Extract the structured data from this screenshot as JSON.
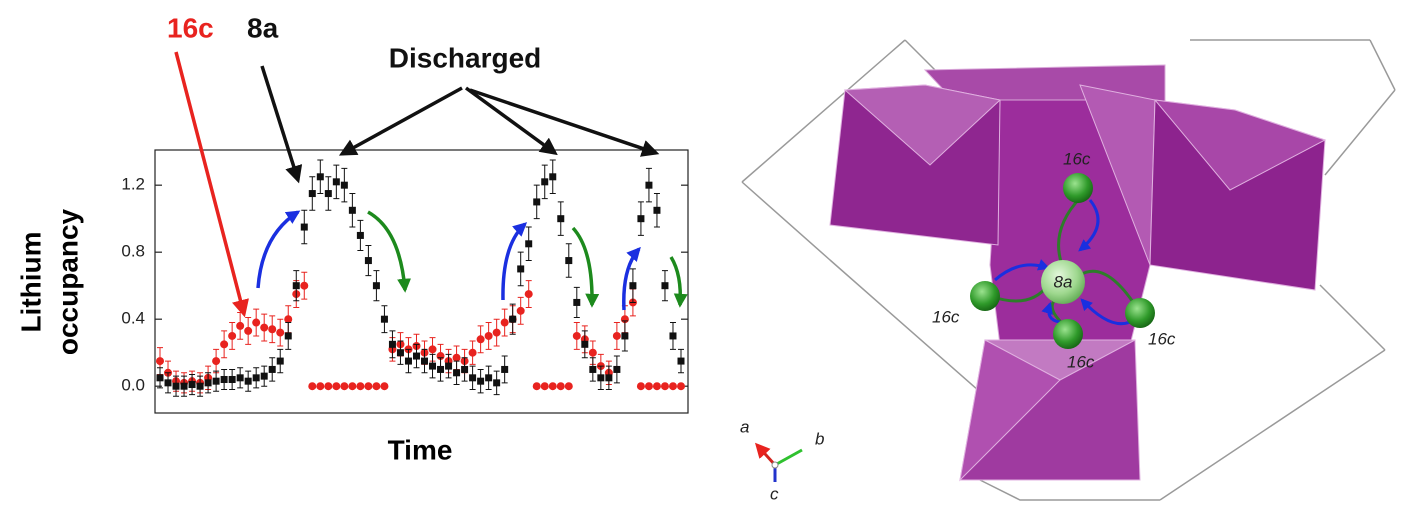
{
  "chart_data": {
    "type": "scatter",
    "ylabel": [
      "Lithium",
      "occupancy"
    ],
    "xlabel": "Time",
    "annotation": "Discharged",
    "ylim": [
      -0.16,
      1.41
    ],
    "yticks": [
      {
        "value": 0,
        "label": "0.0"
      },
      0.4,
      0.8,
      1.2
    ],
    "series": [
      {
        "name": "16c",
        "color": "#e8231f",
        "marker": "circle",
        "values": [
          0.15,
          0.08,
          0.03,
          0.02,
          0.03,
          0.02,
          0.05,
          0.15,
          0.25,
          0.3,
          0.36,
          0.33,
          0.38,
          0.35,
          0.34,
          0.32,
          0.4,
          0.55,
          0.6,
          0,
          0,
          0,
          0,
          0,
          0,
          0,
          0,
          0,
          0,
          0.22,
          0.25,
          0.22,
          0.24,
          0.2,
          0.22,
          0.18,
          0.15,
          0.17,
          0.15,
          0.2,
          0.28,
          0.3,
          0.32,
          0.38,
          0.4,
          0.45,
          0.55,
          0,
          0,
          0,
          0,
          0,
          0.3,
          0.28,
          0.2,
          0.12,
          0.08,
          0.3,
          0.4,
          0.5,
          0,
          0,
          0,
          0,
          0,
          0
        ],
        "errors": [
          0.08,
          0.07,
          0.06,
          0.06,
          0.06,
          0.06,
          0.07,
          0.07,
          0.08,
          0.08,
          0.08,
          0.08,
          0.08,
          0.08,
          0.08,
          0.08,
          0.08,
          0.08,
          0.08,
          0,
          0,
          0,
          0,
          0,
          0,
          0,
          0,
          0,
          0,
          0.07,
          0.07,
          0.07,
          0.07,
          0.07,
          0.07,
          0.07,
          0.07,
          0.07,
          0.07,
          0.07,
          0.08,
          0.08,
          0.08,
          0.08,
          0.08,
          0.08,
          0.08,
          0,
          0,
          0,
          0,
          0,
          0.08,
          0.08,
          0.07,
          0.07,
          0.07,
          0.08,
          0.08,
          0.08,
          0,
          0,
          0,
          0,
          0,
          0
        ]
      },
      {
        "name": "8a",
        "color": "#111111",
        "marker": "square",
        "values": [
          0.05,
          0.02,
          0,
          0,
          0.01,
          0,
          0.02,
          0.03,
          0.04,
          0.04,
          0.05,
          0.03,
          0.05,
          0.06,
          0.1,
          0.15,
          0.3,
          0.6,
          0.95,
          1.15,
          1.25,
          1.15,
          1.22,
          1.2,
          1.05,
          0.9,
          0.75,
          0.6,
          0.4,
          0.25,
          0.2,
          0.15,
          0.18,
          0.15,
          0.12,
          0.1,
          0.12,
          0.08,
          0.1,
          0.05,
          0.03,
          0.05,
          0.02,
          0.1,
          0.4,
          0.7,
          0.85,
          1.1,
          1.22,
          1.25,
          1,
          0.75,
          0.5,
          0.25,
          0.1,
          0.05,
          0.05,
          0.1,
          0.3,
          0.6,
          1,
          1.2,
          1.05,
          0.6,
          0.3,
          0.15
        ],
        "errors": [
          0.06,
          0.06,
          0.06,
          0.06,
          0.06,
          0.06,
          0.06,
          0.06,
          0.06,
          0.06,
          0.06,
          0.06,
          0.06,
          0.06,
          0.07,
          0.07,
          0.08,
          0.09,
          0.1,
          0.1,
          0.1,
          0.1,
          0.1,
          0.1,
          0.1,
          0.09,
          0.09,
          0.09,
          0.08,
          0.08,
          0.07,
          0.07,
          0.07,
          0.07,
          0.07,
          0.07,
          0.07,
          0.07,
          0.07,
          0.07,
          0.07,
          0.07,
          0.07,
          0.08,
          0.09,
          0.1,
          0.1,
          0.1,
          0.1,
          0.1,
          0.1,
          0.1,
          0.09,
          0.08,
          0.07,
          0.07,
          0.07,
          0.08,
          0.09,
          0.1,
          0.1,
          0.1,
          0.1,
          0.09,
          0.08,
          0.07
        ]
      }
    ]
  },
  "structure": {
    "labels": [
      "16c",
      "16c",
      "16c",
      "16c",
      "8a"
    ],
    "axes": [
      "a",
      "b",
      "c"
    ]
  }
}
